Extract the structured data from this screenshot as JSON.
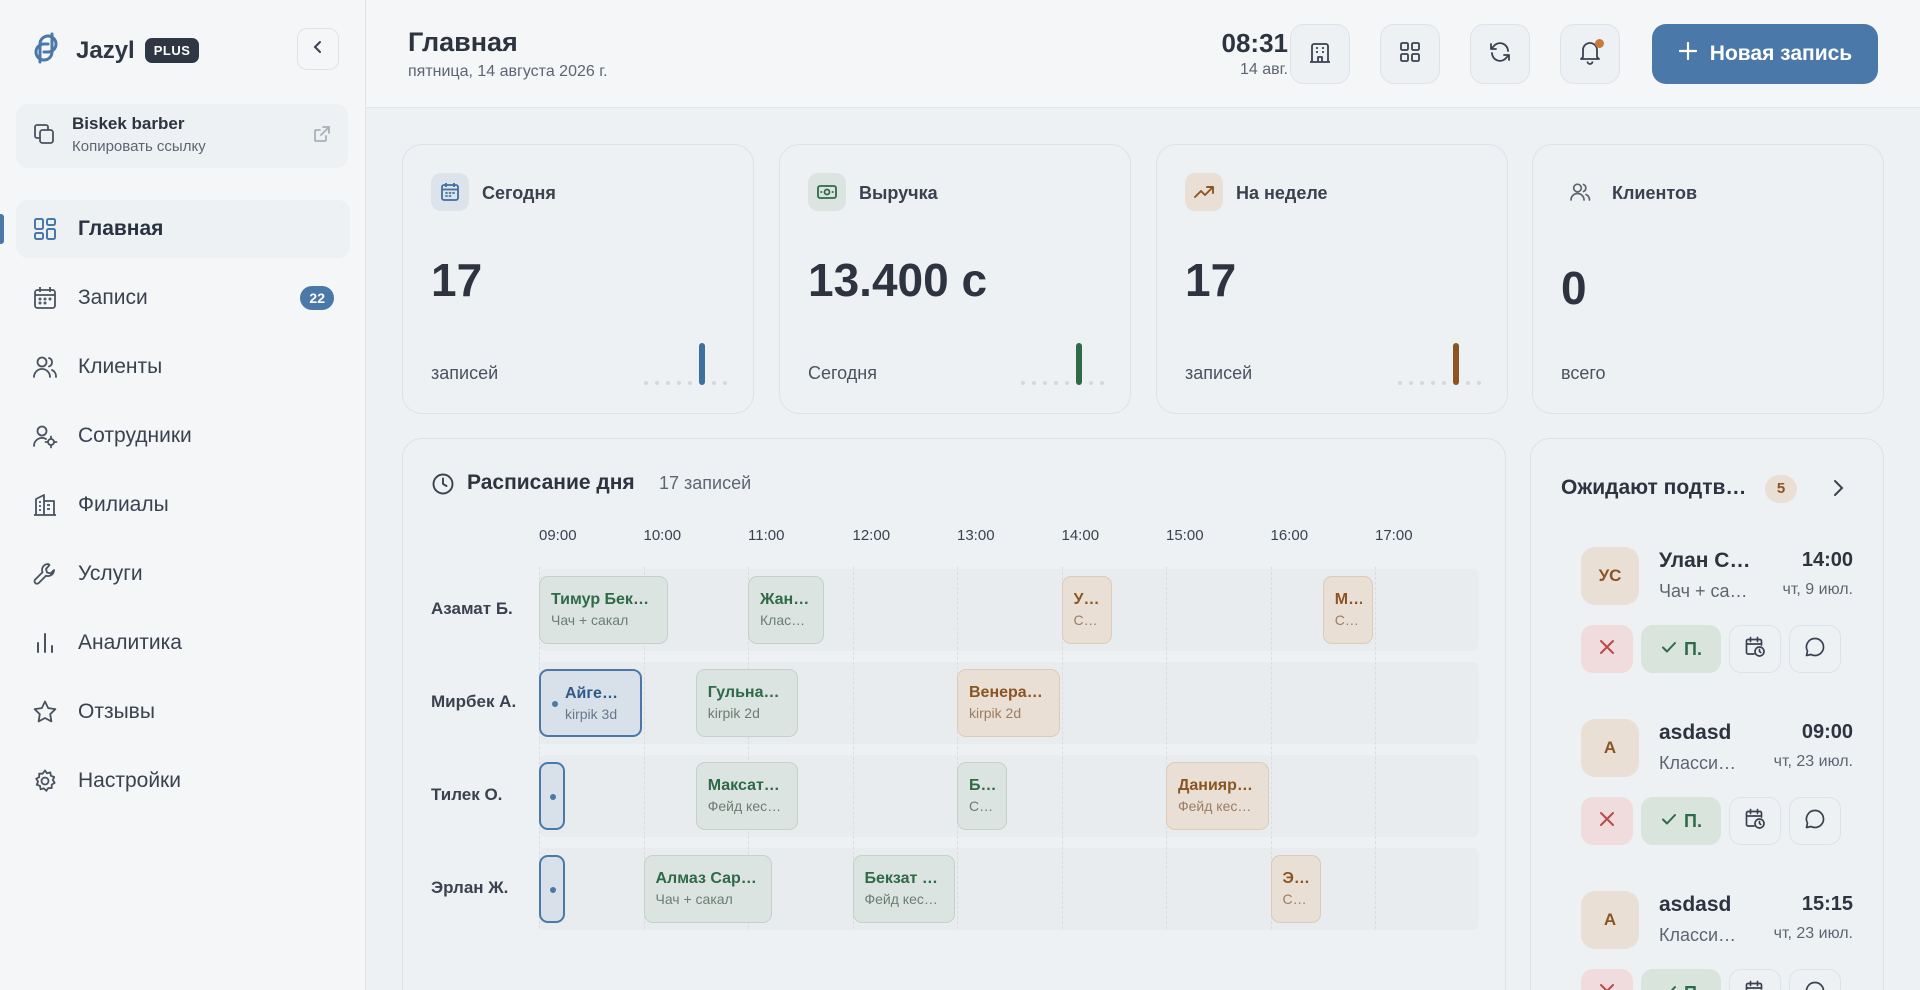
{
  "brand": {
    "name": "Jazyl",
    "badge": "PLUS"
  },
  "shop": {
    "name": "Biskek barber",
    "subtitle": "Копировать ссылку"
  },
  "nav": [
    {
      "label": "Главная",
      "icon": "dashboard-icon",
      "active": true
    },
    {
      "label": "Записи",
      "icon": "calendar-icon",
      "count": "22"
    },
    {
      "label": "Клиенты",
      "icon": "users-icon"
    },
    {
      "label": "Сотрудники",
      "icon": "user-gear-icon"
    },
    {
      "label": "Филиалы",
      "icon": "building-icon"
    },
    {
      "label": "Услуги",
      "icon": "wrench-icon"
    },
    {
      "label": "Аналитика",
      "icon": "bar-chart-icon"
    },
    {
      "label": "Отзывы",
      "icon": "star-icon"
    },
    {
      "label": "Настройки",
      "icon": "settings-icon"
    }
  ],
  "header": {
    "title": "Главная",
    "date": "пятница, 14 августа 2026 г.",
    "time": "08:31",
    "short_date": "14 авг.",
    "new_button": "Новая запись"
  },
  "stats": [
    {
      "title": "Сегодня",
      "value": "17",
      "subtitle": "записей",
      "icon": "calendar-icon",
      "color": "#3f6f9f"
    },
    {
      "title": "Выручка",
      "value": "13.400 с",
      "subtitle": "Сегодня",
      "icon": "cash-icon",
      "color": "#2e6a47"
    },
    {
      "title": "На неделе",
      "value": "17",
      "subtitle": "записей",
      "icon": "trending-up-icon",
      "color": "#8a5522"
    },
    {
      "title": "Клиентов",
      "value": "0",
      "subtitle": "всего",
      "icon": "users-icon",
      "color": "#5d6573"
    }
  ],
  "schedule": {
    "title": "Расписание дня",
    "count": "17 записей",
    "hours": [
      "09:00",
      "10:00",
      "11:00",
      "12:00",
      "13:00",
      "14:00",
      "15:00",
      "16:00",
      "17:00"
    ],
    "staff": [
      "Азамат Б.",
      "Мирбек А.",
      "Тилек О.",
      "Эрлан Ж."
    ],
    "appointments": [
      {
        "row": 0,
        "start": "09:00",
        "end": "10:15",
        "name": "Тимур Бек…",
        "service": "Чач + сакал",
        "status": "green"
      },
      {
        "row": 0,
        "start": "11:00",
        "end": "11:45",
        "name": "Жан…",
        "service": "Клас…",
        "status": "green"
      },
      {
        "row": 0,
        "start": "14:00",
        "end": "14:30",
        "name": "У…",
        "service": "С…",
        "status": "orange"
      },
      {
        "row": 0,
        "start": "16:30",
        "end": "17:00",
        "name": "М…",
        "service": "С…",
        "status": "orange"
      },
      {
        "row": 1,
        "start": "09:00",
        "end": "10:00",
        "name": "Айге…",
        "service": "kirpik 3d",
        "status": "blue"
      },
      {
        "row": 1,
        "start": "10:30",
        "end": "11:30",
        "name": "Гульна…",
        "service": "kirpik 2d",
        "status": "green"
      },
      {
        "row": 1,
        "start": "13:00",
        "end": "14:00",
        "name": "Венера…",
        "service": "kirpik 2d",
        "status": "orange"
      },
      {
        "row": 2,
        "start": "09:00",
        "end": "09:15",
        "name": "",
        "service": "",
        "status": "blue"
      },
      {
        "row": 2,
        "start": "10:30",
        "end": "11:30",
        "name": "Максат…",
        "service": "Фейд кес…",
        "status": "green"
      },
      {
        "row": 2,
        "start": "13:00",
        "end": "13:30",
        "name": "Б…",
        "service": "С…",
        "status": "green"
      },
      {
        "row": 2,
        "start": "15:00",
        "end": "16:00",
        "name": "Данияр…",
        "service": "Фейд кес…",
        "status": "orange"
      },
      {
        "row": 3,
        "start": "09:00",
        "end": "09:15",
        "name": "",
        "service": "",
        "status": "blue"
      },
      {
        "row": 3,
        "start": "10:00",
        "end": "11:15",
        "name": "Алмаз Сар…",
        "service": "Чач + сакал",
        "status": "green"
      },
      {
        "row": 3,
        "start": "12:00",
        "end": "13:00",
        "name": "Бекзат …",
        "service": "Фейд кес…",
        "status": "green"
      },
      {
        "row": 3,
        "start": "16:00",
        "end": "16:30",
        "name": "Э…",
        "service": "С…",
        "status": "orange"
      }
    ]
  },
  "pending": {
    "title": "Ожидают подтв…",
    "count": "5",
    "confirm_label": "П.",
    "items": [
      {
        "initials": "УС",
        "name": "Улан С…",
        "service": "Чач + са…",
        "time": "14:00",
        "date": "чт, 9 июл."
      },
      {
        "initials": "A",
        "name": "asdasd",
        "service": "Класси…",
        "time": "09:00",
        "date": "чт, 23 июл."
      },
      {
        "initials": "A",
        "name": "asdasd",
        "service": "Класси…",
        "time": "15:15",
        "date": "чт, 23 июл."
      }
    ]
  }
}
